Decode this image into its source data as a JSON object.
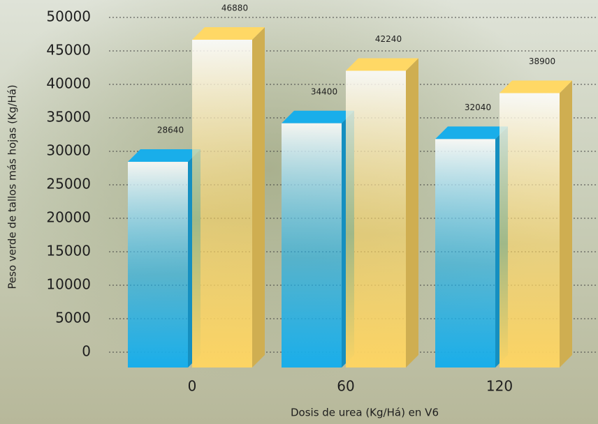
{
  "chart_data": {
    "type": "bar3d",
    "x_label": "Dosis de urea (Kg/Há) en V6",
    "y_label": "Peso verde de tallos más hojas (Kg/Há)",
    "categories": [
      "0",
      "60",
      "120"
    ],
    "series": [
      {
        "color": "#19aeea",
        "values": [
          28640,
          34400,
          32040
        ]
      },
      {
        "color": "#fcd463",
        "values": [
          46880,
          42240,
          38900
        ]
      }
    ],
    "ylim": [
      0,
      50000
    ],
    "yticks": [
      0,
      5000,
      10000,
      15000,
      20000,
      25000,
      30000,
      35000,
      40000,
      45000,
      50000
    ],
    "grid": true
  }
}
